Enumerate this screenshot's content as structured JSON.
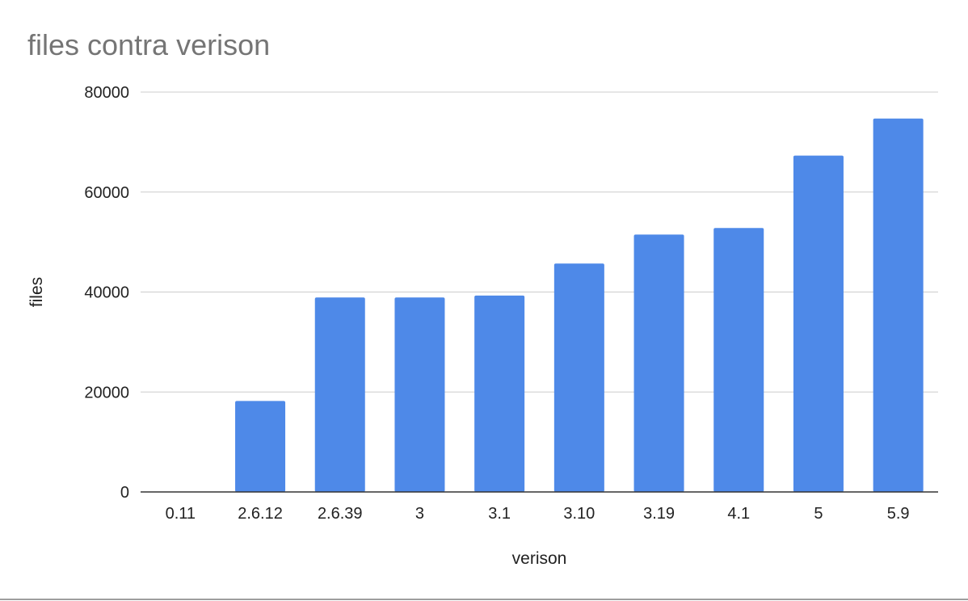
{
  "chart_data": {
    "type": "bar",
    "title": "files contra verison",
    "xlabel": "verison",
    "ylabel": "files",
    "categories": [
      "0.11",
      "2.6.12",
      "2.6.39",
      "3",
      "3.1",
      "3.10",
      "3.19",
      "4.1",
      "5",
      "5.9"
    ],
    "series": [
      {
        "values": [
          0,
          18200,
          38900,
          38900,
          39300,
          45700,
          51500,
          52800,
          67300,
          74700
        ],
        "color": "#4e89e8"
      }
    ],
    "ylim": [
      0,
      80000
    ],
    "yticks": [
      0,
      20000,
      40000,
      60000,
      80000
    ],
    "grid": true,
    "legend": "none"
  }
}
